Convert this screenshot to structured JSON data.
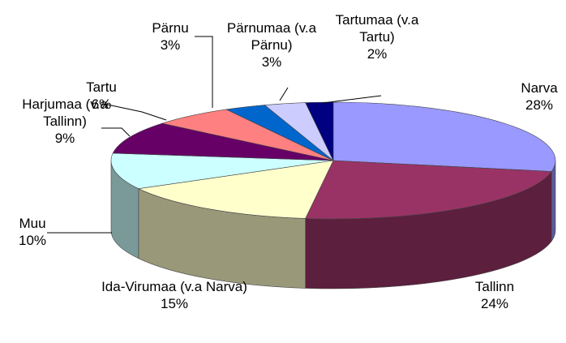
{
  "chart_data": {
    "type": "pie",
    "categories": [
      "Narva",
      "Tallinn",
      "Ida-Virumaa (v.a Narva)",
      "Muu",
      "Harjumaa (v.a Tallinn)",
      "Tartu",
      "Pärnu",
      "Pärnumaa (v.a Pärnu)",
      "Tartumaa (v.a Tartu)"
    ],
    "values": [
      28,
      24,
      15,
      10,
      9,
      6,
      3,
      3,
      2
    ],
    "value_labels": [
      "28%",
      "24%",
      "15%",
      "10%",
      "9%",
      "6%",
      "3%",
      "3%",
      "2%"
    ],
    "colors": [
      "#9999ff",
      "#993366",
      "#ffffcc",
      "#ccffff",
      "#660066",
      "#ff8080",
      "#0066cc",
      "#ccccff",
      "#000080"
    ]
  }
}
